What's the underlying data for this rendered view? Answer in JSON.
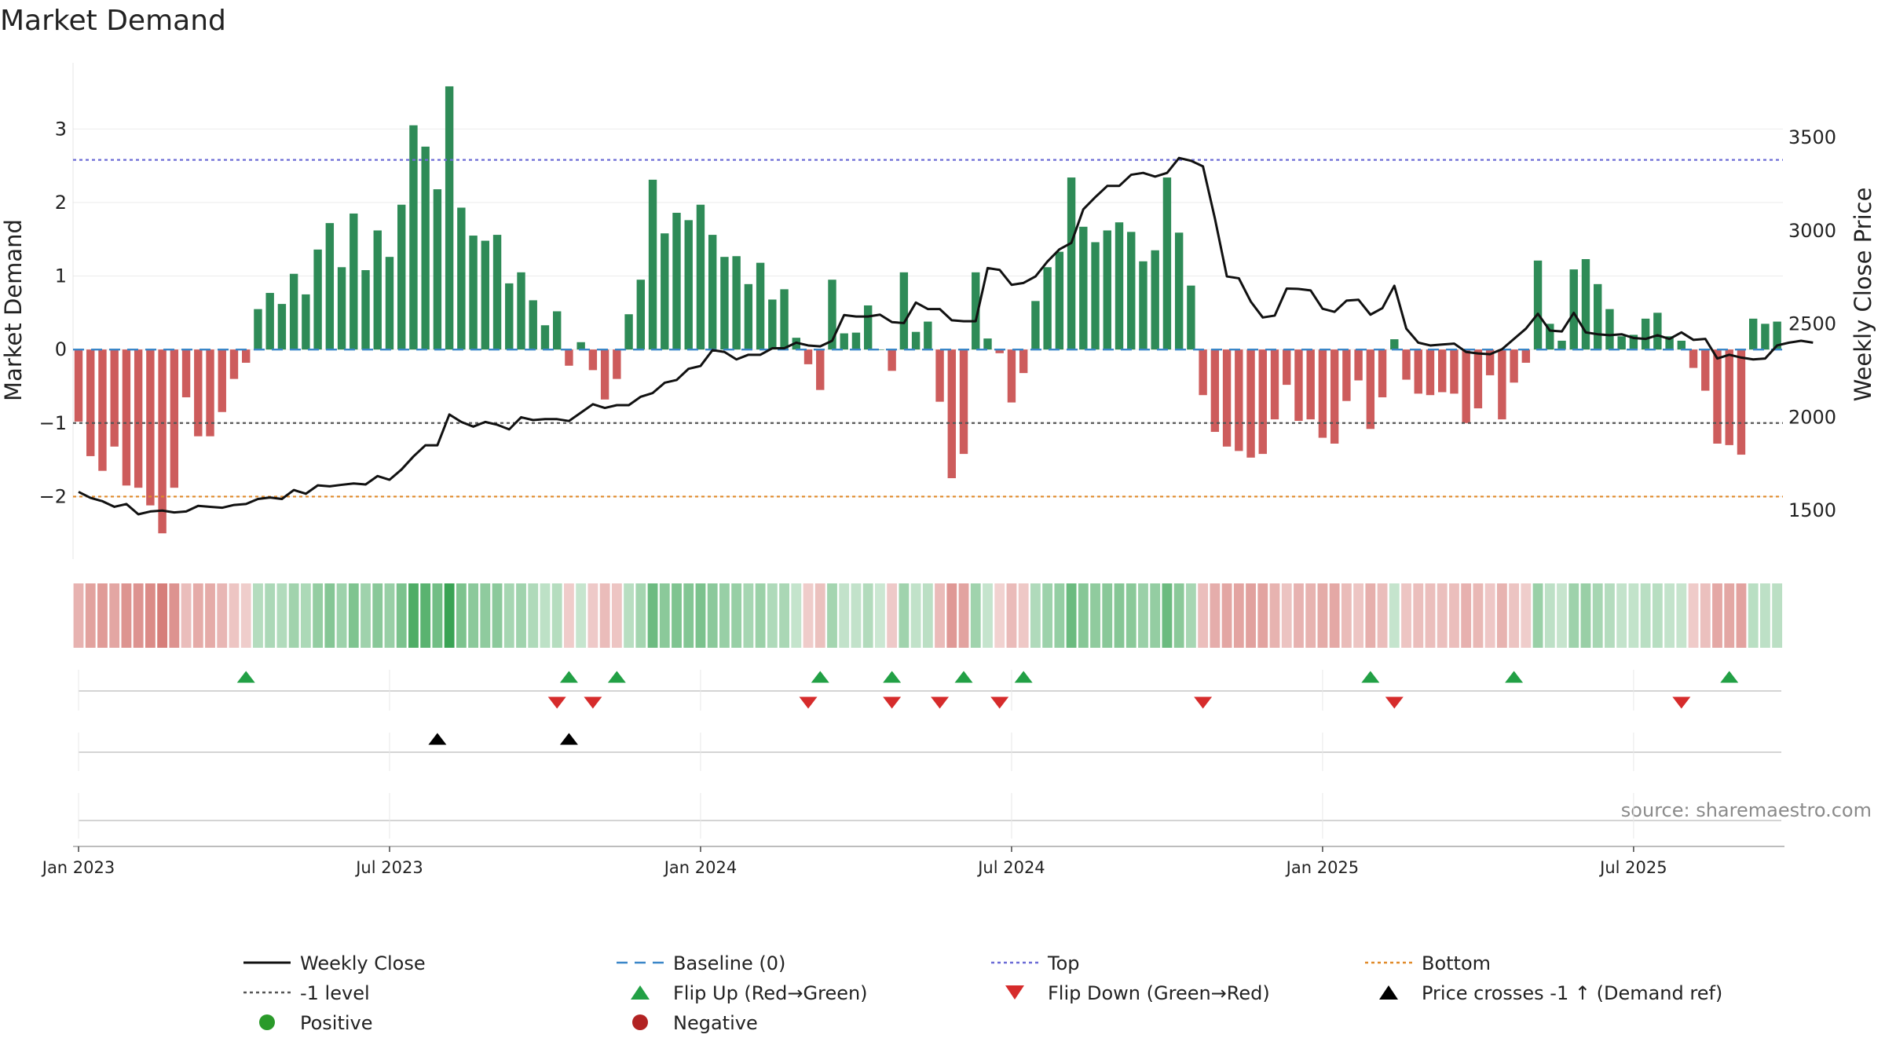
{
  "chart_data": {
    "type": "bar",
    "title": "Market Demand",
    "ylabel": "Market Demand",
    "y2label": "Weekly Close Price",
    "ylim": [
      -2.85,
      3.9
    ],
    "y2lim": [
      1240,
      3900
    ],
    "yticks": [
      3,
      2,
      1,
      0,
      -1,
      -2
    ],
    "yticklabels": [
      "3",
      "2",
      "1",
      "0",
      "−1",
      "−2"
    ],
    "y2ticks": [
      3500,
      3000,
      2500,
      2000,
      1500
    ],
    "y2ticklabels": [
      "3500",
      "3000",
      "2500",
      "2000",
      "1500"
    ],
    "xticks": [
      {
        "label": "Jan 2023",
        "week": 1
      },
      {
        "label": "Jul 2023",
        "week": 27
      },
      {
        "label": "Jan 2024",
        "week": 53
      },
      {
        "label": "Jul 2024",
        "week": 79
      },
      {
        "label": "Jan 2025",
        "week": 105
      },
      {
        "label": "Jul 2025",
        "week": 131
      }
    ],
    "reference_lines": {
      "baseline": 0,
      "top": 2.58,
      "minus_one": -1,
      "bottom": -2
    },
    "demand": [
      -0.98,
      -1.45,
      -1.65,
      -1.32,
      -1.85,
      -1.88,
      -2.12,
      -2.5,
      -1.88,
      -0.65,
      -1.18,
      -1.18,
      -0.85,
      -0.4,
      -0.18,
      0.55,
      0.77,
      0.62,
      1.03,
      0.75,
      1.36,
      1.72,
      1.12,
      1.85,
      1.08,
      1.62,
      1.26,
      1.97,
      3.05,
      2.76,
      2.18,
      3.58,
      1.93,
      1.55,
      1.48,
      1.56,
      0.9,
      1.05,
      0.67,
      0.33,
      0.52,
      -0.22,
      0.1,
      -0.28,
      -0.68,
      -0.4,
      0.48,
      0.95,
      2.31,
      1.58,
      1.86,
      1.76,
      1.97,
      1.56,
      1.26,
      1.27,
      0.89,
      1.18,
      0.68,
      0.82,
      0.16,
      -0.2,
      -0.55,
      0.95,
      0.22,
      0.23,
      0.6,
      0.0,
      -0.29,
      1.05,
      0.24,
      0.38,
      -0.71,
      -1.75,
      -1.42,
      1.05,
      0.15,
      -0.05,
      -0.72,
      -0.32,
      0.66,
      1.12,
      1.33,
      2.34,
      1.67,
      1.46,
      1.62,
      1.73,
      1.6,
      1.2,
      1.35,
      2.34,
      1.59,
      0.87,
      -0.62,
      -1.12,
      -1.32,
      -1.38,
      -1.47,
      -1.42,
      -0.95,
      -0.48,
      -0.97,
      -0.95,
      -1.2,
      -1.28,
      -0.7,
      -0.42,
      -1.08,
      -0.65,
      0.14,
      -0.41,
      -0.6,
      -0.62,
      -0.58,
      -0.6,
      -1.0,
      -0.8,
      -0.35,
      -0.95,
      -0.45,
      -0.18,
      1.21,
      0.35,
      0.12,
      1.09,
      1.23,
      0.89,
      0.55,
      0.18,
      0.2,
      0.42,
      0.5,
      0.18,
      0.12,
      -0.25,
      -0.56,
      -1.28,
      -1.3,
      -1.43,
      0.42,
      0.35,
      0.38
    ],
    "weekly_close": [
      1600,
      1568,
      1550,
      1520,
      1535,
      1480,
      1495,
      1500,
      1490,
      1495,
      1525,
      1520,
      1515,
      1530,
      1535,
      1562,
      1570,
      1562,
      1610,
      1590,
      1635,
      1630,
      1638,
      1645,
      1640,
      1685,
      1665,
      1720,
      1790,
      1850,
      1850,
      2015,
      1975,
      1950,
      1975,
      1960,
      1935,
      2000,
      1985,
      1990,
      1990,
      1980,
      2025,
      2070,
      2050,
      2065,
      2065,
      2110,
      2130,
      2185,
      2200,
      2260,
      2275,
      2360,
      2350,
      2310,
      2335,
      2335,
      2370,
      2370,
      2400,
      2385,
      2380,
      2410,
      2548,
      2540,
      2540,
      2550,
      2510,
      2505,
      2615,
      2580,
      2580,
      2520,
      2515,
      2515,
      2800,
      2790,
      2710,
      2720,
      2755,
      2835,
      2900,
      2935,
      3115,
      3180,
      3240,
      3240,
      3300,
      3310,
      3290,
      3310,
      3390,
      3375,
      3345,
      3065,
      2755,
      2745,
      2620,
      2535,
      2545,
      2690,
      2688,
      2680,
      2582,
      2565,
      2625,
      2630,
      2550,
      2585,
      2705,
      2475,
      2400,
      2385,
      2390,
      2395,
      2350,
      2342,
      2338,
      2365,
      2420,
      2475,
      2555,
      2465,
      2460,
      2560,
      2455,
      2445,
      2440,
      2445,
      2425,
      2420,
      2440,
      2420,
      2455,
      2415,
      2420,
      2315,
      2335,
      2320,
      2310,
      2315,
      2385,
      2400,
      2410,
      2400
    ],
    "flip_up_weeks": [
      15,
      42,
      46,
      63,
      69,
      75,
      80,
      109,
      121,
      139
    ],
    "flip_down_weeks": [
      41,
      44,
      62,
      69,
      73,
      78,
      95,
      111,
      135
    ],
    "price_cross_weeks": [
      31,
      42
    ],
    "legend": [
      {
        "key": "weekly_close",
        "label": "Weekly Close",
        "color": "#111111"
      },
      {
        "key": "baseline",
        "label": "Baseline (0)",
        "color": "#3a86c8"
      },
      {
        "key": "top",
        "label": "Top",
        "color": "#6b6bd6"
      },
      {
        "key": "bottom",
        "label": "Bottom",
        "color": "#e08a2a"
      },
      {
        "key": "minus_one",
        "label": "-1 level",
        "color": "#555555"
      },
      {
        "key": "flip_up",
        "label": "Flip Up (Red→Green)",
        "color": "#22a045"
      },
      {
        "key": "flip_down",
        "label": "Flip Down (Green→Red)",
        "color": "#d62b2b"
      },
      {
        "key": "price_cross",
        "label": "Price crosses -1 ↑ (Demand ref)",
        "color": "#000000"
      },
      {
        "key": "positive",
        "label": "Positive",
        "color": "#2a9a2a"
      },
      {
        "key": "negative",
        "label": "Negative",
        "color": "#b22222"
      }
    ],
    "colors": {
      "positive_bar": "#2e8b57",
      "negative_bar": "#cd5c5c",
      "heat_positive": "#2e9e4a",
      "heat_negative": "#c8504a"
    }
  },
  "source": "source: sharemaestro.com"
}
